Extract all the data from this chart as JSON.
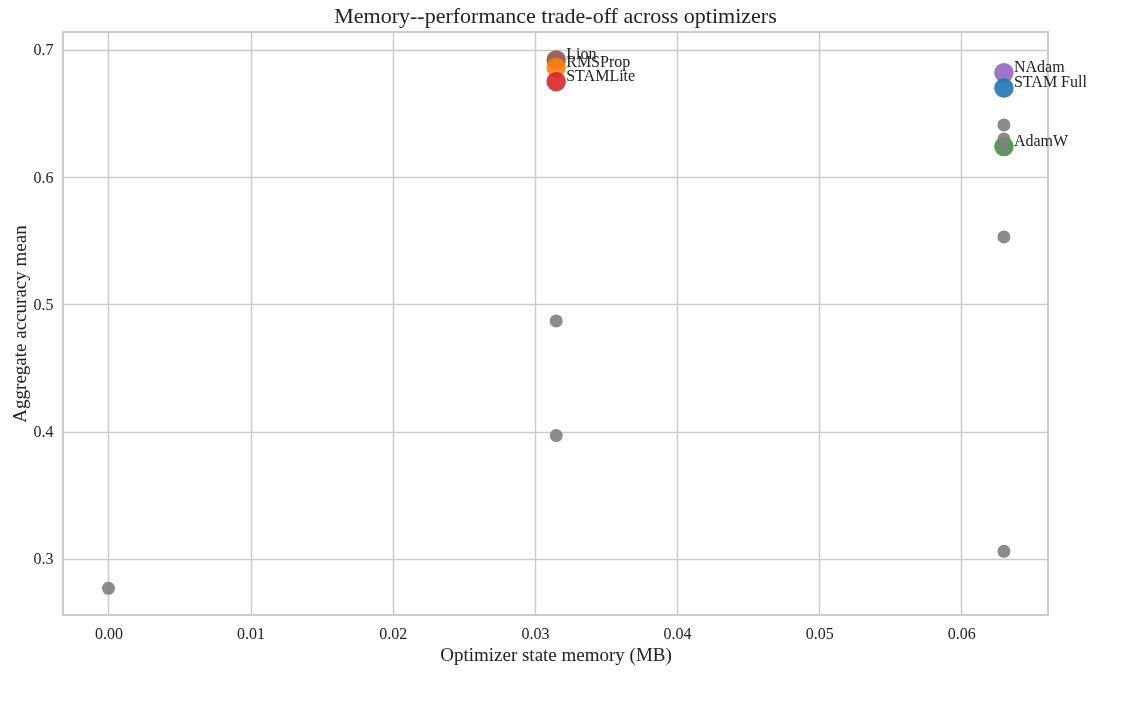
{
  "chart_data": {
    "type": "scatter",
    "title": "Memory--performance trade-off across optimizers",
    "xlabel": "Optimizer state memory (MB)",
    "ylabel": "Aggregate accuracy mean",
    "xlim": [
      -0.0032,
      0.0661
    ],
    "ylim": [
      0.256,
      0.714
    ],
    "xticks": [
      {
        "value": 0,
        "label": "0.00"
      },
      {
        "value": 0.01,
        "label": "0.01"
      },
      {
        "value": 0.02,
        "label": "0.02"
      },
      {
        "value": 0.03,
        "label": "0.03"
      },
      {
        "value": 0.04,
        "label": "0.04"
      },
      {
        "value": 0.05,
        "label": "0.05"
      },
      {
        "value": 0.06,
        "label": "0.06"
      }
    ],
    "yticks": [
      {
        "value": 0.3,
        "label": "0.3"
      },
      {
        "value": 0.4,
        "label": "0.4"
      },
      {
        "value": 0.5,
        "label": "0.5"
      },
      {
        "value": 0.6,
        "label": "0.6"
      },
      {
        "value": 0.7,
        "label": "0.7"
      }
    ],
    "grid": true,
    "legend": false,
    "marker": "circle",
    "series": [
      {
        "name": "Lion",
        "color": "#8c564b",
        "x": [
          0.0315
        ],
        "values": [
          0.692
        ]
      },
      {
        "name": "RMSProp",
        "color": "#ff7f0e",
        "x": [
          0.0315
        ],
        "values": [
          0.686
        ]
      },
      {
        "name": "STAMLite",
        "color": "#d62728",
        "x": [
          0.0315
        ],
        "values": [
          0.675
        ]
      },
      {
        "name": "NAdam",
        "color": "#9467bd",
        "x": [
          0.063
        ],
        "values": [
          0.682
        ]
      },
      {
        "name": "STAM Full",
        "color": "#1f77b4",
        "x": [
          0.063
        ],
        "values": [
          0.67
        ]
      },
      {
        "name": "AdamW",
        "color": "#2ca02c",
        "x": [
          0.063
        ],
        "values": [
          0.624
        ]
      },
      {
        "color": "#7f7f7f",
        "x": [
          0,
          0.0315,
          0.0315,
          0.063,
          0.063,
          0.063,
          0.063,
          0.063
        ],
        "values": [
          0.277,
          0.487,
          0.397,
          0.553,
          0.306,
          0.641,
          0.63,
          0.623
        ]
      }
    ]
  }
}
